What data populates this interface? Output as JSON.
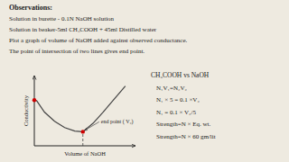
{
  "chart_data": {
    "type": "line",
    "title": "Observations:",
    "observations": [
      "Solution in burette - 0.1N NaOH solution",
      "Solution in beaker-5ml CH₃COOH + 45ml Distilled water",
      "Plot a graph of volume of NaOH added against observed conductance.",
      "The point of intersection of two lines gives end point."
    ],
    "side_text": [
      "CH₃COOH vs NaOH",
      "N₁V₁=N₂V₂",
      "N₁ × 5 = 0.1 ×V₂",
      "N₁ = 0.1 × V₂/5",
      "Strength=N × Eq. wt.",
      "Strength=N × 60 gm/lit"
    ],
    "x_label": "Volume of NaOH",
    "y_label": "Conductivity",
    "xlim": [
      0,
      10
    ],
    "ylim": [
      0,
      10
    ],
    "xticks": [],
    "yticks": [],
    "tick_labels": false,
    "grid": false,
    "series": [
      {
        "x": [
          0.2,
          1.0,
          2.0,
          3.0,
          4.0,
          4.8
        ],
        "values": [
          6.5,
          4.8,
          3.5,
          2.6,
          2.1,
          2.0
        ],
        "color": "#444444"
      },
      {
        "x": [
          4.8,
          5.8,
          6.8,
          7.8,
          9.0
        ],
        "values": [
          2.0,
          3.2,
          4.8,
          6.5,
          8.5
        ],
        "color": "#444444"
      },
      {
        "type": "scatter",
        "x": [
          4.8
        ],
        "values": [
          2.0
        ],
        "color": "#cc0000"
      },
      {
        "type": "scatter",
        "x": [
          0
        ],
        "values": [
          6.5
        ],
        "color": "#cc0000"
      }
    ],
    "annotations": [
      {
        "text": "end point ( V₂)",
        "x": 4.8,
        "y": 2.0
      }
    ]
  }
}
